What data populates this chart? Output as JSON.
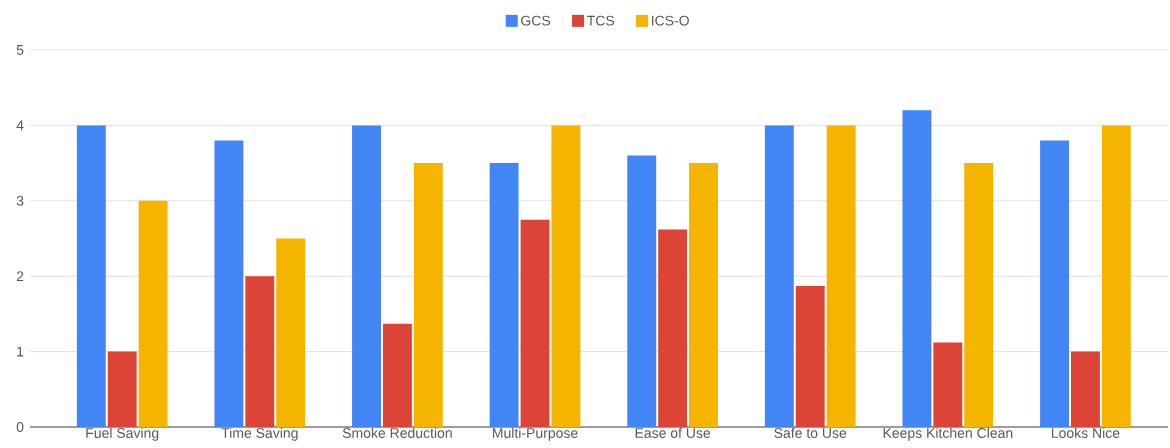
{
  "chart_data": {
    "type": "bar",
    "categories": [
      "Fuel Saving",
      "Time Saving",
      "Smoke Reduction",
      "Multi-Purpose",
      "Ease of Use",
      "Safe to Use",
      "Keeps Kitchen Clean",
      "Looks Nice"
    ],
    "series": [
      {
        "name": "GCS",
        "color": "#4285f4",
        "values": [
          4,
          3.8,
          4,
          3.5,
          3.6,
          4,
          4.2,
          3.8
        ]
      },
      {
        "name": "TCS",
        "color": "#db4437",
        "values": [
          1,
          2,
          1.37,
          2.75,
          2.62,
          1.87,
          1.12,
          1
        ]
      },
      {
        "name": "ICS-O",
        "color": "#f4b400",
        "values": [
          3,
          2.5,
          3.5,
          4,
          3.5,
          4,
          3.5,
          4
        ]
      }
    ],
    "ylim": [
      0,
      5
    ],
    "yticks": [
      0,
      1,
      2,
      3,
      4,
      5
    ],
    "grid": "y",
    "legend": "top"
  }
}
